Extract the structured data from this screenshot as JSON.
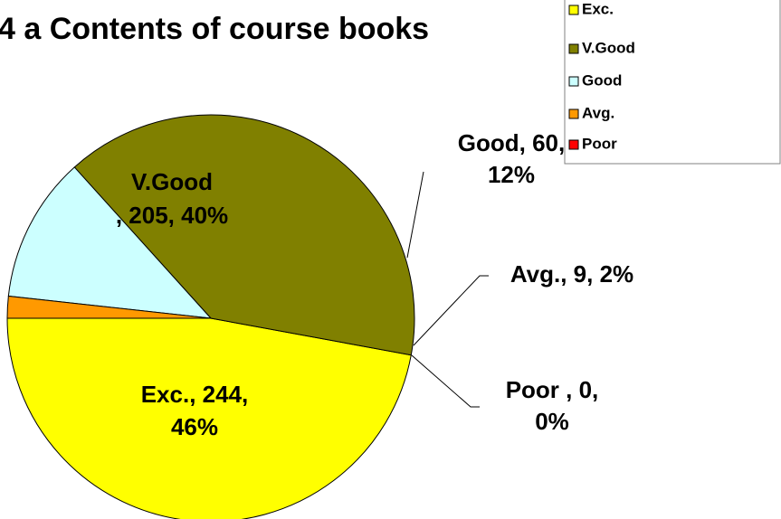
{
  "chart_data": {
    "type": "pie",
    "title": "4 a Contents of course books",
    "categories": [
      "Exc.",
      "V.Good",
      "Good",
      "Avg.",
      "Poor"
    ],
    "values": [
      244,
      205,
      60,
      9,
      0
    ],
    "value_labels": [
      [
        "Exc., 244,",
        "46%"
      ],
      [
        "V.Good",
        ", 205, 40%"
      ],
      [
        "Good, 60,",
        "12%"
      ],
      [
        "Avg., 9, 2%"
      ],
      [
        "Poor , 0,",
        "0%"
      ]
    ],
    "colors": [
      "#ffff00",
      "#808000",
      "#ccffff",
      "#ff9900",
      "#ff0000"
    ],
    "legend": "top-right"
  }
}
